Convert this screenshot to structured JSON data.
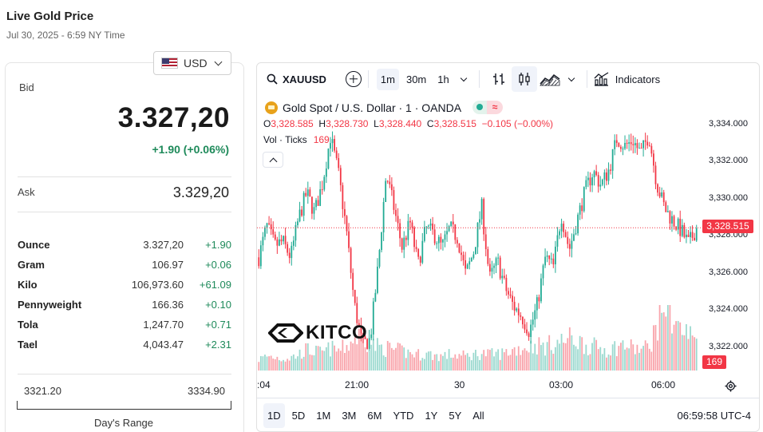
{
  "page": {
    "title": "Live Gold Price",
    "subtitle": "Jul 30, 2025 - 6:59 NY Time"
  },
  "currency": {
    "selected": "USD"
  },
  "quote": {
    "bid_label": "Bid",
    "bid_value": "3.327,20",
    "bid_change": "+1.90 (+0.06%)",
    "ask_label": "Ask",
    "ask_value": "3.329,20"
  },
  "units": [
    {
      "name": "Ounce",
      "price": "3.327,20",
      "change": "+1.90"
    },
    {
      "name": "Gram",
      "price": "106.97",
      "change": "+0.06"
    },
    {
      "name": "Kilo",
      "price": "106,973.60",
      "change": "+61.09"
    },
    {
      "name": "Pennyweight",
      "price": "166.36",
      "change": "+0.10"
    },
    {
      "name": "Tola",
      "price": "1,247.70",
      "change": "+0.71"
    },
    {
      "name": "Tael",
      "price": "4,043.47",
      "change": "+2.31"
    }
  ],
  "days_range": {
    "low": "3321.20",
    "high": "3334.90",
    "label": "Day's Range"
  },
  "toolbar": {
    "symbol": "XAUUSD",
    "intervals": [
      "1m",
      "30m",
      "1h"
    ],
    "active_interval": "1m",
    "indicators_label": "Indicators"
  },
  "legend": {
    "instrument": "Gold Spot / U.S. Dollar · 1 · OANDA",
    "o_label": "O",
    "o_value": "3,328.585",
    "h_label": "H",
    "h_value": "3,328.730",
    "l_label": "L",
    "l_value": "3,328.440",
    "c_label": "C",
    "c_value": "3,328.515",
    "change": "−0.105 (−0.00%)",
    "status_mark": "≈",
    "vol_label": "Vol · Ticks",
    "vol_value": "169"
  },
  "watermark": "KITCO",
  "price_badge": "3,328.515",
  "volume_badge": "169",
  "colors": {
    "up": "#22ab94",
    "down": "#f23645",
    "badge": "#f23645"
  },
  "bottom_bar": {
    "ranges": [
      "1D",
      "5D",
      "1M",
      "3M",
      "6M",
      "YTD",
      "1Y",
      "5Y",
      "All"
    ],
    "active_range": "1D",
    "clock": "06:59:58 UTC-4"
  },
  "chart_data": {
    "type": "candlestick",
    "y_ticks": [
      "3,334.000",
      "3,332.000",
      "3,330.000",
      "3,328.000",
      "3,326.000",
      "3,324.000",
      "3,322.000"
    ],
    "x_ticks": [
      ":04",
      "21:00",
      "30",
      "03:00",
      "06:00"
    ],
    "ylim": [
      3321,
      3334.5
    ],
    "last_price": 3328.515,
    "price_path": [
      3327.0,
      3328.6,
      3327.6,
      3327.8,
      3327.0,
      3329.0,
      3330.3,
      3329.3,
      3330.8,
      3333.2,
      3331.3,
      3328.4,
      3324.6,
      3322.5,
      3322.8,
      3326.6,
      3331.3,
      3329.5,
      3327.5,
      3328.8,
      3326.6,
      3328.5,
      3328.2,
      3327.5,
      3328.5,
      3328.0,
      3326.1,
      3327.3,
      3329.6,
      3325.9,
      3326.8,
      3325.4,
      3324.5,
      3324.0,
      3323.2,
      3324.6,
      3327.0,
      3326.5,
      3329.2,
      3327.4,
      3328.9,
      3330.4,
      3331.4,
      3330.7,
      3331.5,
      3333.1,
      3332.7,
      3333.0,
      3332.3,
      3333.3,
      3330.8,
      3329.5,
      3328.9,
      3328.4,
      3327.7,
      3328.5
    ],
    "volume_path": [
      14,
      18,
      17,
      15,
      16,
      20,
      26,
      24,
      22,
      28,
      25,
      30,
      40,
      45,
      34,
      30,
      28,
      26,
      24,
      22,
      20,
      21,
      19,
      18,
      20,
      19,
      18,
      20,
      22,
      20,
      21,
      22,
      26,
      28,
      30,
      32,
      30,
      34,
      36,
      40,
      38,
      32,
      30,
      28,
      26,
      30,
      32,
      28,
      26,
      30,
      55,
      90,
      70,
      50,
      45,
      40
    ]
  }
}
